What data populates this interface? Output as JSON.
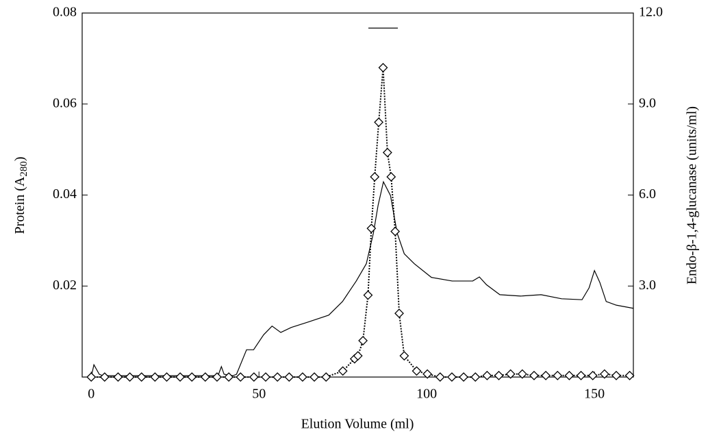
{
  "chart_data": {
    "type": "line",
    "xlabel": "Elution Volume (ml)",
    "ylabel_parts": [
      "Protein (A",
      "280",
      ")"
    ],
    "y2label": "Endo-β-1,4-glucanase (units/ml)",
    "xlim": [
      -2.7,
      161.6
    ],
    "xticks": [
      0,
      50,
      100,
      150
    ],
    "ylim": [
      0,
      0.08
    ],
    "yticks": [
      0.02,
      0.04,
      0.06,
      0.08
    ],
    "y2lim": [
      0,
      12
    ],
    "y2ticks": [
      {
        "value": 3,
        "label": "3.0"
      },
      {
        "value": 6,
        "label": "6.0"
      },
      {
        "value": 9,
        "label": "9.0"
      },
      {
        "value": 12,
        "label": "12.0"
      }
    ],
    "series": [
      {
        "name": "Protein",
        "axis": "y",
        "color": "#000000",
        "style": "solid",
        "marker": "none",
        "x": [
          0,
          0.8,
          2.4,
          3.5,
          37.8,
          38.8,
          39.6,
          42.2,
          43.3,
          46.3,
          48.4,
          51.4,
          53.9,
          56.5,
          59.6,
          64.7,
          70.8,
          74.9,
          79.0,
          82.0,
          84.1,
          85.5,
          87.1,
          89.2,
          91.2,
          93.3,
          96.3,
          101.4,
          107.6,
          113.7,
          115.7,
          117.8,
          121.8,
          128,
          134.1,
          140.2,
          146.3,
          148.4,
          150,
          151.6,
          153.5,
          156.5,
          161.6
        ],
        "values": [
          0,
          0.0027,
          0.0006,
          0.0003,
          0.0003,
          0.0023,
          0.0006,
          0.0003,
          0.0006,
          0.006,
          0.006,
          0.0093,
          0.0112,
          0.0098,
          0.0109,
          0.0121,
          0.0136,
          0.0166,
          0.0211,
          0.0249,
          0.0316,
          0.0377,
          0.0429,
          0.0399,
          0.0316,
          0.0271,
          0.0249,
          0.0219,
          0.0211,
          0.0211,
          0.022,
          0.0203,
          0.0181,
          0.0178,
          0.0181,
          0.0172,
          0.017,
          0.0196,
          0.0234,
          0.0208,
          0.0166,
          0.0158,
          0.0151
        ]
      },
      {
        "name": "Endo-β-1,4-glucanase",
        "axis": "y2",
        "color": "#000000",
        "style": "dotted",
        "marker": "diamond",
        "x": [
          0,
          4,
          8,
          11.5,
          15,
          19,
          22.5,
          26.5,
          30,
          34,
          37.5,
          41,
          44.5,
          48.5,
          52,
          55.5,
          59,
          63,
          66.5,
          70,
          75,
          78.5,
          79.5,
          81,
          82.5,
          83.5,
          84.5,
          85.7,
          87,
          88.3,
          89.4,
          90.6,
          91.8,
          93.3,
          97,
          100.2,
          104,
          107.5,
          111,
          114.5,
          118,
          121.5,
          125,
          128.5,
          132,
          135.5,
          139,
          142.5,
          146,
          149.5,
          153,
          156.5,
          160.5
        ],
        "values": [
          0,
          0,
          0,
          0,
          0,
          0,
          0,
          0,
          0,
          0,
          0,
          0,
          0,
          0,
          0,
          0,
          0,
          0,
          0,
          0,
          0.2,
          0.6,
          0.7,
          1.2,
          2.7,
          4.9,
          6.6,
          8.4,
          10.2,
          7.4,
          6.6,
          4.8,
          2.1,
          0.7,
          0.2,
          0.1,
          0,
          0,
          0,
          0,
          0.05,
          0.05,
          0.1,
          0.1,
          0.05,
          0.05,
          0.05,
          0.05,
          0.05,
          0.05,
          0.1,
          0.05,
          0.05
        ]
      }
    ]
  }
}
